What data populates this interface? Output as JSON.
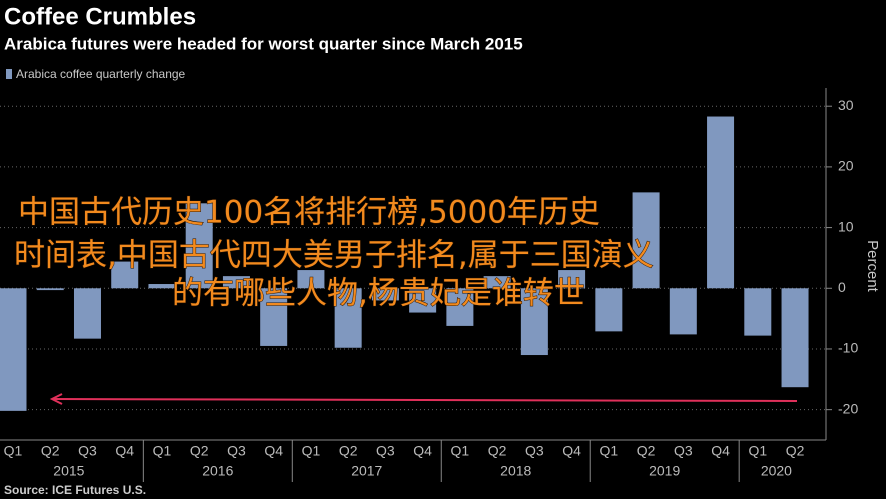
{
  "chart_data": {
    "type": "bar",
    "title": "Coffee Crumbles",
    "subtitle": "Arabica futures were headed for worst quarter since March 2015",
    "source": "Source: ICE Futures U.S.",
    "y_label": "Percent",
    "categories": [
      "Q1",
      "Q2",
      "Q3",
      "Q4",
      "Q1",
      "Q2",
      "Q3",
      "Q4",
      "Q1",
      "Q2",
      "Q3",
      "Q4",
      "Q1",
      "Q2",
      "Q3",
      "Q4",
      "Q1",
      "Q2",
      "Q3",
      "Q4",
      "Q1",
      "Q2"
    ],
    "year_labels": [
      "2015",
      "2016",
      "2017",
      "2018",
      "2019",
      "2020"
    ],
    "series": [
      {
        "name": "Arabica coffee quarterly change",
        "color": "#8098bf",
        "values": [
          -20.2,
          -0.3,
          -8.3,
          4.4,
          0.7,
          14,
          2,
          -9.5,
          3,
          -9.8,
          -2,
          -4,
          -6.2,
          2,
          -11,
          3,
          -7.1,
          15.8,
          -7.6,
          28.3,
          -7.8,
          -16.3
        ]
      }
    ],
    "ylim": [
      -25,
      33
    ],
    "yticks": [
      30,
      20,
      10,
      0,
      -10,
      -20
    ],
    "grid": true,
    "overlay_text": [
      "中国古代历史100名将排行榜,5000年历史",
      "时间表,中国古代四大美男子排名,属于三国演义",
      "的有哪些人物,杨贵妃是谁转世"
    ]
  }
}
